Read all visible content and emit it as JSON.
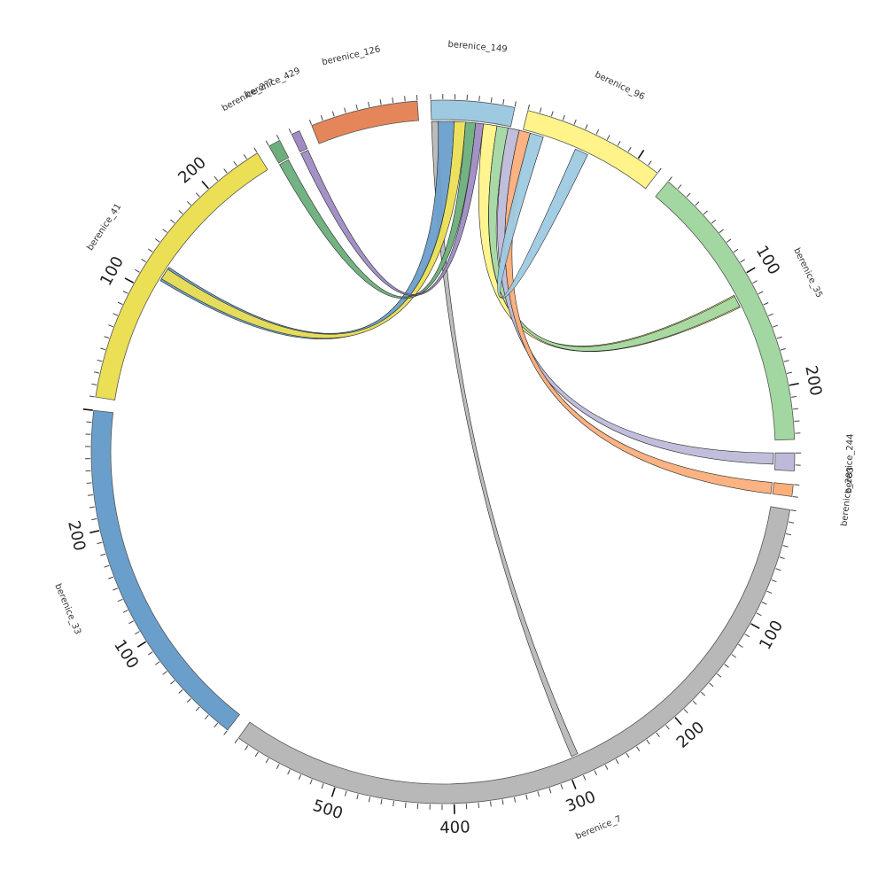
{
  "chart_data": {
    "type": "chord",
    "segments": [
      {
        "name": "berenice_149",
        "length": 70,
        "color": "#9ecae1"
      },
      {
        "name": "berenice_96",
        "length": 120,
        "color": "#fff38a"
      },
      {
        "name": "berenice_35",
        "length": 245,
        "color": "#a3d7a1"
      },
      {
        "name": "berenice_244",
        "length": 15,
        "color": "#bdbad9"
      },
      {
        "name": "berenice_283",
        "length": 10,
        "color": "#fcae7b"
      },
      {
        "name": "berenice_7",
        "length": 590,
        "color": "#b8b8b8"
      },
      {
        "name": "berenice_33",
        "length": 300,
        "color": "#6a9fcc"
      },
      {
        "name": "berenice_41",
        "length": 250,
        "color": "#ebdf55"
      },
      {
        "name": "berenice_2??",
        "length": 10,
        "color": "#6cae7c"
      },
      {
        "name": "berenice_429",
        "length": 7,
        "color": "#9e8cc2"
      },
      {
        "name": "berenice_126",
        "length": 90,
        "color": "#e5865a"
      }
    ],
    "major_tick_labels": {
      "berenice_35": [
        100,
        200
      ],
      "berenice_7": [
        100,
        200,
        300,
        400,
        500
      ],
      "berenice_33": [
        100,
        200
      ],
      "berenice_41": [
        100,
        200
      ]
    },
    "links": [
      {
        "source": "berenice_149",
        "target": "berenice_7",
        "color": "#b8b8b8",
        "width": 6
      },
      {
        "source": "berenice_149",
        "target": "berenice_41",
        "color": "#6a9fcc",
        "width": 14
      },
      {
        "source": "berenice_149",
        "target": "berenice_41",
        "color": "#ebdf55",
        "width": 10
      },
      {
        "source": "berenice_149",
        "target": "berenice_2??",
        "color": "#6cae7c",
        "width": 9
      },
      {
        "source": "berenice_149",
        "target": "berenice_429",
        "color": "#9e8cc2",
        "width": 7
      },
      {
        "source": "berenice_149",
        "target": "berenice_35",
        "color": "#fff38a",
        "width": 12
      },
      {
        "source": "berenice_149",
        "target": "berenice_35",
        "color": "#a3d7a1",
        "width": 10
      },
      {
        "source": "berenice_149",
        "target": "berenice_244",
        "color": "#bdbad9",
        "width": 10
      },
      {
        "source": "berenice_149",
        "target": "berenice_283",
        "color": "#fcae7b",
        "width": 10
      },
      {
        "source": "berenice_149",
        "target": "berenice_96",
        "color": "#9ecae1",
        "width": 12
      }
    ]
  }
}
